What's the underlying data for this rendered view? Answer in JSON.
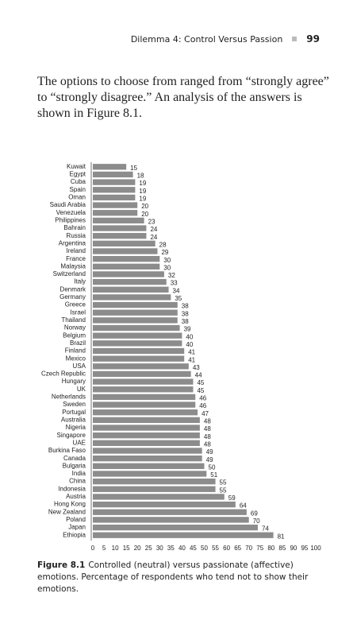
{
  "header": {
    "running_title": "Dilemma 4: Control Versus Passion",
    "page_number": "99"
  },
  "paragraph": "The options to choose from ranged from “strongly agree” to “strongly disagree.” An analysis of the answers is shown in Figure 8.1.",
  "chart_data": {
    "type": "hbar",
    "categories": [
      "Kuwait",
      "Egypt",
      "Cuba",
      "Spain",
      "Oman",
      "Saudi Arabia",
      "Venezuela",
      "Philippines",
      "Bahrain",
      "Russia",
      "Argentina",
      "Ireland",
      "France",
      "Malaysia",
      "Switzerland",
      "Italy",
      "Denmark",
      "Germany",
      "Greece",
      "Israel",
      "Thailand",
      "Norway",
      "Belgium",
      "Brazil",
      "Finland",
      "Mexico",
      "USA",
      "Czech Republic",
      "Hungary",
      "UK",
      "Netherlands",
      "Sweden",
      "Portugal",
      "Australia",
      "Nigeria",
      "Singapore",
      "UAE",
      "Burkina Faso",
      "Canada",
      "Bulgaria",
      "India",
      "China",
      "Indonesia",
      "Austria",
      "Hong Kong",
      "New Zealand",
      "Poland",
      "Japan",
      "Ethiopia"
    ],
    "values": [
      15,
      18,
      19,
      19,
      19,
      20,
      20,
      23,
      24,
      24,
      28,
      29,
      30,
      30,
      32,
      33,
      34,
      35,
      38,
      38,
      38,
      39,
      40,
      40,
      41,
      41,
      43,
      44,
      45,
      45,
      46,
      46,
      47,
      48,
      48,
      48,
      48,
      49,
      49,
      50,
      51,
      55,
      55,
      59,
      64,
      69,
      70,
      74,
      81
    ],
    "color": "#8c8c8c",
    "xlim": [
      0,
      100
    ],
    "xticks": [
      0,
      5,
      10,
      15,
      20,
      25,
      30,
      35,
      40,
      45,
      50,
      55,
      60,
      65,
      70,
      75,
      80,
      85,
      90,
      95,
      100
    ]
  },
  "caption": {
    "label": "Figure 8.1",
    "text": "Controlled (neutral) versus passionate (affective) emotions. Percentage of respondents who tend not to show their emotions."
  }
}
